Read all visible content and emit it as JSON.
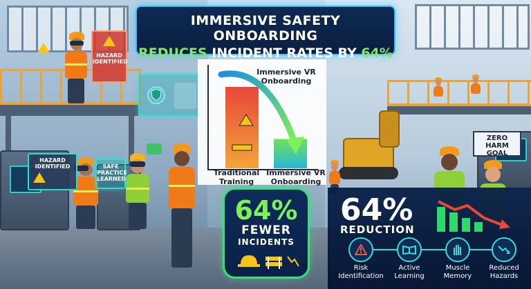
{
  "title": {
    "line1": "IMMERSIVE SAFETY ONBOARDING",
    "line2_green": "REDUCES",
    "line2_mid": " INCIDENT RATES BY ",
    "line2_pct": "64%"
  },
  "chart_data": {
    "type": "bar",
    "categories": [
      "Traditional Training",
      "Immersive VR Onboarding"
    ],
    "series_labels_on_bars": [
      "",
      "Immersive VR Onboarding"
    ],
    "values": [
      100,
      36
    ],
    "colors": [
      "#e8473a",
      "#5fd16a"
    ],
    "title": "",
    "xlabel": "",
    "ylabel": ""
  },
  "chart_labels": {
    "bar2_top": "Immersive VR\nOnboarding",
    "x_left": "Traditional\nTraining",
    "x_right": "Immersive VR\nOnboarding"
  },
  "stat": {
    "pct": "64%",
    "word1": "FEWER",
    "word2": "INCIDENTS"
  },
  "reduction": {
    "pct": "64%",
    "word": "REDUCTION"
  },
  "benefits": [
    {
      "label": "Risk\nIdentification",
      "icon": "warning-icon"
    },
    {
      "label": "Active\nLearning",
      "icon": "book-icon"
    },
    {
      "label": "Muscle\nMemory",
      "icon": "hand-icon"
    },
    {
      "label": "Reduced\nHazards",
      "icon": "trend-down-icon"
    }
  ],
  "holograms": {
    "hazard_top": "HAZARD\nIDENTIFIED",
    "hazard_left": "HAZARD\nIDENTIFIED",
    "safe_practice": "SAFE\nPRACTICE\nLEARNED"
  },
  "signs": {
    "zero_harm": "ZERO HARM\nGOAL"
  },
  "colors": {
    "accent_cyan": "#35c2ff",
    "accent_green": "#7ef05a",
    "navy": "#0a2148",
    "vest_orange": "#ef7a17"
  }
}
